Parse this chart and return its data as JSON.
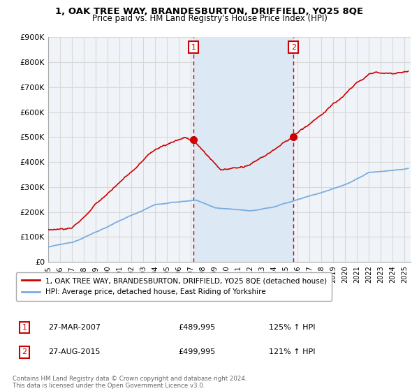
{
  "title": "1, OAK TREE WAY, BRANDESBURTON, DRIFFIELD, YO25 8QE",
  "subtitle": "Price paid vs. HM Land Registry's House Price Index (HPI)",
  "ylabel_ticks": [
    "£0",
    "£100K",
    "£200K",
    "£300K",
    "£400K",
    "£500K",
    "£600K",
    "£700K",
    "£800K",
    "£900K"
  ],
  "ylim": [
    0,
    900000
  ],
  "xlim_start": 1995.0,
  "xlim_end": 2025.5,
  "background_color": "#ffffff",
  "plot_bg_color": "#f0f4f8",
  "shade_color": "#dce9f5",
  "grid_color": "#d8d8d8",
  "hpi_color": "#7aace0",
  "price_color": "#cc0000",
  "vline_color": "#cc0000",
  "sale1_x": 2007.23,
  "sale1_y": 489995,
  "sale1_label": "1",
  "sale1_date": "27-MAR-2007",
  "sale1_price": "£489,995",
  "sale1_hpi": "125% ↑ HPI",
  "sale2_x": 2015.65,
  "sale2_y": 499995,
  "sale2_label": "2",
  "sale2_date": "27-AUG-2015",
  "sale2_price": "£499,995",
  "sale2_hpi": "121% ↑ HPI",
  "legend_line1": "1, OAK TREE WAY, BRANDESBURTON, DRIFFIELD, YO25 8QE (detached house)",
  "legend_line2": "HPI: Average price, detached house, East Riding of Yorkshire",
  "footnote": "Contains HM Land Registry data © Crown copyright and database right 2024.\nThis data is licensed under the Open Government Licence v3.0."
}
